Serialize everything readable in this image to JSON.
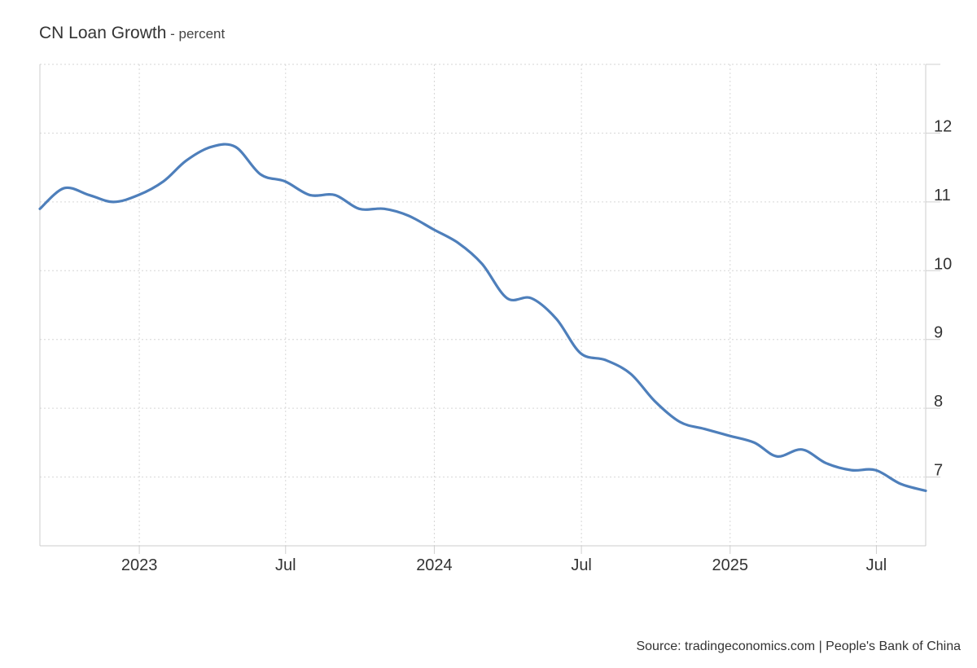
{
  "title": {
    "main": "CN Loan Growth",
    "separator": " - ",
    "unit": "percent"
  },
  "source": "Source: tradingeconomics.com | People's Bank of China",
  "chart_data": {
    "type": "line",
    "title": "CN Loan Growth",
    "subtitle": "percent",
    "xlabel": "",
    "ylabel": "",
    "x_ticks": [
      "2023",
      "Jul",
      "2024",
      "Jul",
      "2025",
      "Jul"
    ],
    "x_tick_dates": [
      "2023-01-01",
      "2023-07-01",
      "2024-01-01",
      "2024-07-01",
      "2025-01-01",
      "2025-07-01"
    ],
    "y_ticks": [
      7,
      8,
      9,
      10,
      11,
      12
    ],
    "ylim": [
      6,
      13
    ],
    "xlim": [
      "2022-08-31",
      "2025-08-31"
    ],
    "grid": true,
    "legend": "none",
    "line_color": "#4e7fbb",
    "series": [
      {
        "x": [
          "2022-08-31",
          "2022-09-30",
          "2022-10-31",
          "2022-11-30",
          "2022-12-31",
          "2023-01-31",
          "2023-02-28",
          "2023-03-31",
          "2023-04-30",
          "2023-05-31",
          "2023-06-30",
          "2023-07-31",
          "2023-08-31",
          "2023-09-30",
          "2023-10-31",
          "2023-11-30",
          "2023-12-31",
          "2024-01-31",
          "2024-02-29",
          "2024-03-31",
          "2024-04-30",
          "2024-05-31",
          "2024-06-30",
          "2024-07-31",
          "2024-08-31",
          "2024-09-30",
          "2024-10-31",
          "2024-11-30",
          "2024-12-31",
          "2025-01-31",
          "2025-02-28",
          "2025-03-31",
          "2025-04-30",
          "2025-05-31",
          "2025-06-30",
          "2025-07-31",
          "2025-08-31"
        ],
        "values": [
          10.9,
          11.2,
          11.1,
          11.0,
          11.1,
          11.3,
          11.6,
          11.8,
          11.8,
          11.4,
          11.3,
          11.1,
          11.1,
          10.9,
          10.9,
          10.8,
          10.6,
          10.4,
          10.1,
          9.6,
          9.6,
          9.3,
          8.8,
          8.7,
          8.5,
          8.1,
          7.8,
          7.7,
          7.6,
          7.5,
          7.3,
          7.4,
          7.2,
          7.1,
          7.1,
          6.9,
          6.8
        ]
      }
    ]
  }
}
